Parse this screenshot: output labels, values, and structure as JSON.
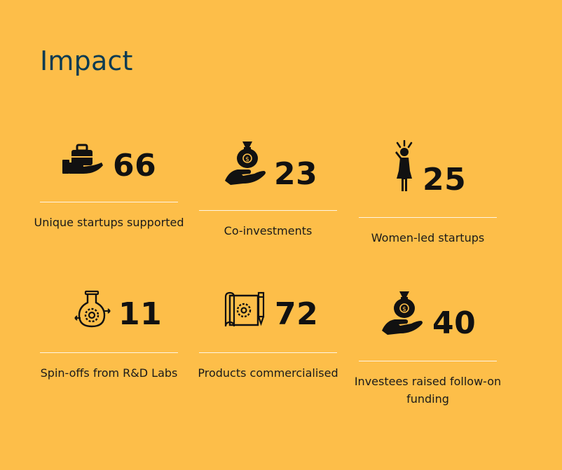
{
  "page": {
    "title": "Impact"
  },
  "stats": [
    {
      "icon": "briefcase-hand-icon",
      "value": "66",
      "label": "Unique startups supported"
    },
    {
      "icon": "money-bag-hand-icon",
      "value": "23",
      "label": "Co-investments"
    },
    {
      "icon": "woman-icon",
      "value": "25",
      "label": "Women-led startups"
    },
    {
      "icon": "flask-gear-icon",
      "value": "11",
      "label": "Spin-offs from R&D Labs"
    },
    {
      "icon": "blueprint-gear-icon",
      "value": "72",
      "label": "Products commercialised"
    },
    {
      "icon": "money-bag-hand-icon",
      "value": "40",
      "label": "Investees raised follow-on funding"
    }
  ],
  "colors": {
    "background": "#FDBE49",
    "title": "#0B3B52",
    "text": "#111111"
  }
}
